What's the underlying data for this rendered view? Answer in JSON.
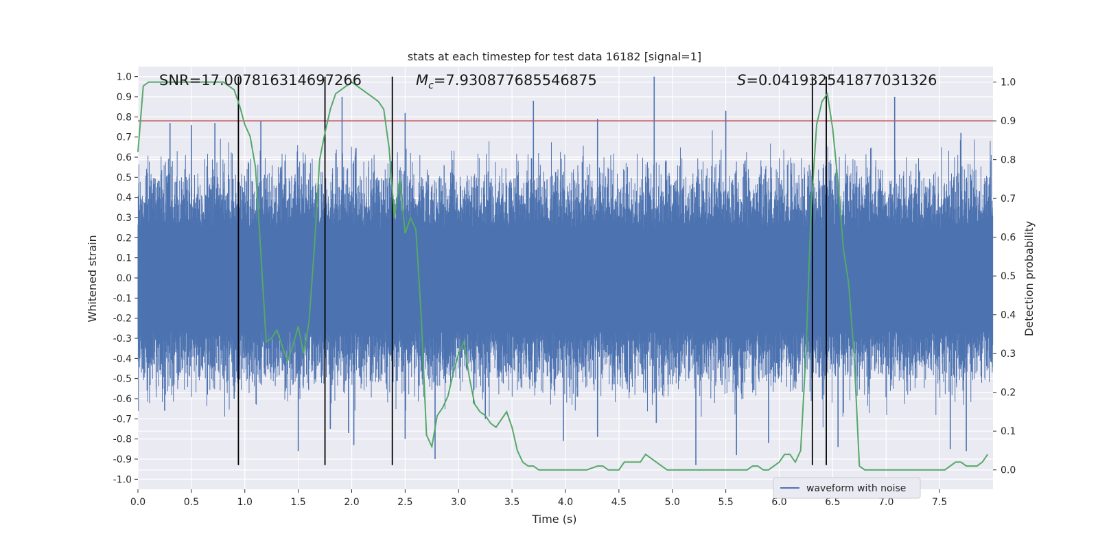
{
  "chart_data": {
    "type": "line",
    "title": "stats at each timestep for test data 16182 [signal=1]",
    "xlabel": "Time (s)",
    "ylabel_left": "Whitened strain",
    "ylabel_right": "Detection probability",
    "xlim": [
      0.0,
      8.0
    ],
    "ylim_left": [
      -1.05,
      1.05
    ],
    "ylim_right": [
      -0.05,
      1.04
    ],
    "x_ticks": [
      "0.0",
      "0.5",
      "1.0",
      "1.5",
      "2.0",
      "2.5",
      "3.0",
      "3.5",
      "4.0",
      "4.5",
      "5.0",
      "5.5",
      "6.0",
      "6.5",
      "7.0",
      "7.5"
    ],
    "x_tick_values": [
      0.0,
      0.5,
      1.0,
      1.5,
      2.0,
      2.5,
      3.0,
      3.5,
      4.0,
      4.5,
      5.0,
      5.5,
      6.0,
      6.5,
      7.0,
      7.5
    ],
    "y_left_ticks": [
      "1.0",
      "0.9",
      "0.8",
      "0.7",
      "0.6",
      "0.5",
      "0.4",
      "0.3",
      "0.2",
      "0.1",
      "0.0",
      "-0.1",
      "-0.2",
      "-0.3",
      "-0.4",
      "-0.5",
      "-0.6",
      "-0.7",
      "-0.8",
      "-0.9",
      "-1.0"
    ],
    "y_left_tick_values": [
      1.0,
      0.9,
      0.8,
      0.7,
      0.6,
      0.5,
      0.4,
      0.3,
      0.2,
      0.1,
      0.0,
      -0.1,
      -0.2,
      -0.3,
      -0.4,
      -0.5,
      -0.6,
      -0.7,
      -0.8,
      -0.9,
      -1.0
    ],
    "y_right_ticks": [
      "1.0",
      "0.9",
      "0.8",
      "0.7",
      "0.6",
      "0.5",
      "0.4",
      "0.3",
      "0.2",
      "0.1",
      "0.0"
    ],
    "y_right_tick_values": [
      1.0,
      0.9,
      0.8,
      0.7,
      0.6,
      0.5,
      0.4,
      0.3,
      0.2,
      0.1,
      0.0
    ],
    "grid": true,
    "annotations": {
      "snr": "SNR=17.007816314697266",
      "mc_symbol": "M",
      "mc_sub": "c",
      "mc_value": "=7.930877685546875",
      "s_symbol": "S",
      "s_value": "=0.041932541877031326"
    },
    "threshold": {
      "value_right": 0.9,
      "color": "#c44e52"
    },
    "vertical_lines": [
      0.94,
      1.75,
      2.38,
      6.31,
      6.44
    ],
    "vertical_line_range_left": [
      -0.93,
      1.0
    ],
    "series": [
      {
        "name": "waveform with noise",
        "color": "#4c72b0",
        "spikes": [
          [
            0.3,
            0.77
          ],
          [
            0.5,
            0.76
          ],
          [
            0.72,
            0.77
          ],
          [
            1.15,
            0.78
          ],
          [
            1.91,
            0.9
          ],
          [
            2.5,
            0.82
          ],
          [
            3.7,
            0.88
          ],
          [
            4.3,
            0.79
          ],
          [
            4.83,
            1.0
          ],
          [
            5.5,
            0.83
          ],
          [
            7.08,
            0.9
          ],
          [
            7.7,
            0.72
          ],
          [
            0.25,
            -0.66
          ],
          [
            0.9,
            -0.6
          ],
          [
            1.5,
            -0.86
          ],
          [
            1.97,
            -0.77
          ],
          [
            2.02,
            -0.83
          ],
          [
            2.5,
            -0.8
          ],
          [
            2.78,
            -0.9
          ],
          [
            3.25,
            -0.7
          ],
          [
            3.98,
            -0.81
          ],
          [
            4.3,
            -0.79
          ],
          [
            5.22,
            -0.93
          ],
          [
            5.6,
            -0.88
          ],
          [
            5.9,
            -0.82
          ],
          [
            6.55,
            -0.84
          ],
          [
            7.6,
            -0.85
          ],
          [
            7.75,
            -0.86
          ],
          [
            1.8,
            -0.75
          ],
          [
            4.85,
            -0.72
          ]
        ]
      },
      {
        "name": "",
        "color": "#55a868",
        "axis": "right",
        "x": [
          0.0,
          0.05,
          0.1,
          0.15,
          0.2,
          0.3,
          0.4,
          0.5,
          0.6,
          0.7,
          0.8,
          0.85,
          0.9,
          0.95,
          1.0,
          1.05,
          1.1,
          1.15,
          1.2,
          1.25,
          1.3,
          1.35,
          1.4,
          1.45,
          1.5,
          1.55,
          1.6,
          1.65,
          1.7,
          1.75,
          1.8,
          1.85,
          1.9,
          1.95,
          2.0,
          2.05,
          2.1,
          2.15,
          2.2,
          2.25,
          2.3,
          2.35,
          2.4,
          2.45,
          2.5,
          2.55,
          2.6,
          2.65,
          2.7,
          2.75,
          2.8,
          2.85,
          2.9,
          2.95,
          3.0,
          3.05,
          3.1,
          3.15,
          3.2,
          3.25,
          3.3,
          3.35,
          3.4,
          3.45,
          3.5,
          3.55,
          3.6,
          3.65,
          3.7,
          3.75,
          3.8,
          3.85,
          3.9,
          3.95,
          4.0,
          4.1,
          4.2,
          4.3,
          4.35,
          4.4,
          4.45,
          4.5,
          4.55,
          4.6,
          4.65,
          4.7,
          4.75,
          4.8,
          4.85,
          4.9,
          4.95,
          5.0,
          5.1,
          5.2,
          5.3,
          5.4,
          5.5,
          5.6,
          5.7,
          5.75,
          5.8,
          5.85,
          5.9,
          5.95,
          6.0,
          6.05,
          6.1,
          6.15,
          6.2,
          6.25,
          6.3,
          6.35,
          6.4,
          6.45,
          6.5,
          6.55,
          6.6,
          6.65,
          6.7,
          6.75,
          6.8,
          6.85,
          6.9,
          7.0,
          7.2,
          7.4,
          7.5,
          7.55,
          7.6,
          7.65,
          7.7,
          7.75,
          7.8,
          7.85,
          7.9,
          7.95
        ],
        "y": [
          0.82,
          0.99,
          1.0,
          1.0,
          1.0,
          1.0,
          1.0,
          1.0,
          1.0,
          1.0,
          1.0,
          0.99,
          0.98,
          0.94,
          0.89,
          0.86,
          0.78,
          0.56,
          0.33,
          0.34,
          0.36,
          0.32,
          0.28,
          0.32,
          0.37,
          0.3,
          0.38,
          0.57,
          0.8,
          0.87,
          0.93,
          0.97,
          0.98,
          0.99,
          1.0,
          0.99,
          0.98,
          0.97,
          0.96,
          0.95,
          0.93,
          0.83,
          0.65,
          0.75,
          0.61,
          0.65,
          0.62,
          0.4,
          0.09,
          0.06,
          0.14,
          0.16,
          0.19,
          0.25,
          0.3,
          0.33,
          0.24,
          0.17,
          0.15,
          0.14,
          0.12,
          0.11,
          0.13,
          0.15,
          0.11,
          0.05,
          0.02,
          0.01,
          0.01,
          0.0,
          0.0,
          0.0,
          0.0,
          0.0,
          0.0,
          0.0,
          0.0,
          0.01,
          0.01,
          0.0,
          0.0,
          0.0,
          0.02,
          0.02,
          0.02,
          0.02,
          0.04,
          0.03,
          0.02,
          0.01,
          0.0,
          0.0,
          0.0,
          0.0,
          0.0,
          0.0,
          0.0,
          0.0,
          0.0,
          0.01,
          0.01,
          0.0,
          0.0,
          0.01,
          0.02,
          0.04,
          0.04,
          0.02,
          0.05,
          0.3,
          0.68,
          0.89,
          0.95,
          0.97,
          0.88,
          0.74,
          0.57,
          0.48,
          0.3,
          0.01,
          0.0,
          0.0,
          0.0,
          0.0,
          0.0,
          0.0,
          0.0,
          0.0,
          0.01,
          0.02,
          0.02,
          0.01,
          0.01,
          0.01,
          0.02,
          0.04
        ]
      }
    ],
    "legend": {
      "entries": [
        "waveform with noise"
      ],
      "placement": "lower-right"
    }
  }
}
